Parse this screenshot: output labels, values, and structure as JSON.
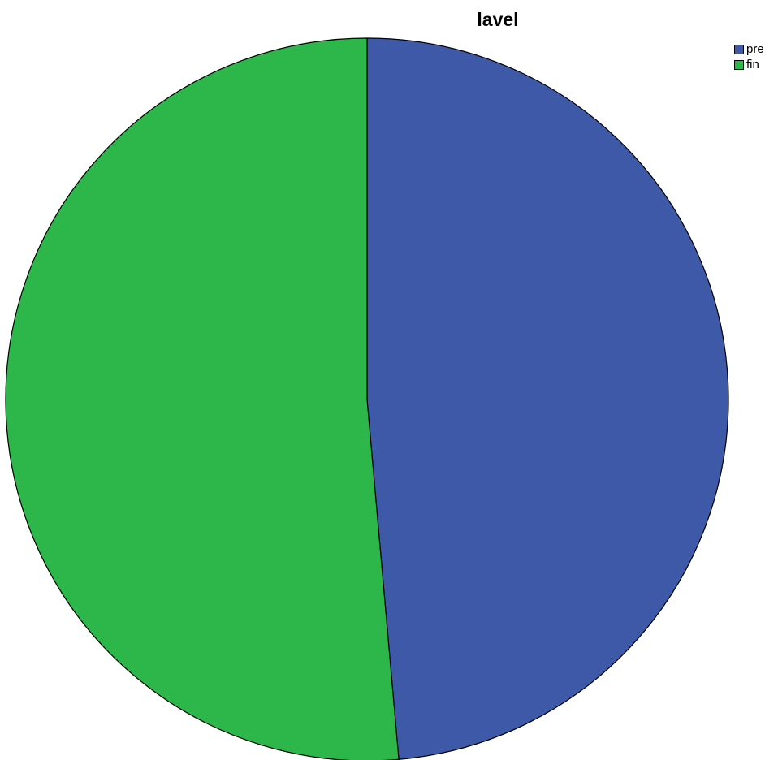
{
  "chart_data": {
    "type": "pie",
    "title": "lavel",
    "categories": [
      "pre",
      "fin"
    ],
    "values": [
      48.6,
      51.4
    ],
    "colors": [
      "#3f59a9",
      "#2db74a"
    ],
    "legend_position": "top-right",
    "start": "top",
    "direction": "clockwise"
  }
}
